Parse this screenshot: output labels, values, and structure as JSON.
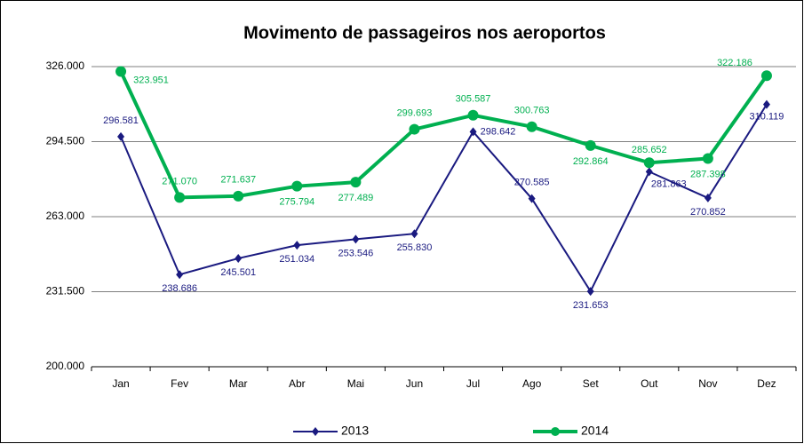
{
  "chart_data": {
    "type": "line",
    "title": "Movimento de passageiros nos aeroportos",
    "categories": [
      "Jan",
      "Fev",
      "Mar",
      "Abr",
      "Mai",
      "Jun",
      "Jul",
      "Ago",
      "Set",
      "Out",
      "Nov",
      "Dez"
    ],
    "series": [
      {
        "name": "2013",
        "color": "#1a1a80",
        "marker": "diamond",
        "values": [
          296581,
          238686,
          245501,
          251034,
          253546,
          255830,
          298642,
          270585,
          231653,
          281863,
          270852,
          310119
        ],
        "value_labels": [
          "296.581",
          "238.686",
          "245.501",
          "251.034",
          "253.546",
          "255.830",
          "298.642",
          "270.585",
          "231.653",
          "281.863",
          "270.852",
          "310.119"
        ]
      },
      {
        "name": "2014",
        "color": "#00b050",
        "marker": "circle",
        "values": [
          323951,
          271070,
          271637,
          275794,
          277489,
          299693,
          305587,
          300763,
          292864,
          285652,
          287398,
          322186
        ],
        "value_labels": [
          "323.951",
          "271.070",
          "271.637",
          "275.794",
          "277.489",
          "299.693",
          "305.587",
          "300.763",
          "292.864",
          "285.652",
          "287.398",
          "322.186"
        ]
      }
    ],
    "ylim": [
      200000,
      326000
    ],
    "yticks": [
      {
        "value": 200000,
        "label": "200.000"
      },
      {
        "value": 231500,
        "label": "231.500"
      },
      {
        "value": 263000,
        "label": "263.000"
      },
      {
        "value": 294500,
        "label": "294.500"
      },
      {
        "value": 326000,
        "label": "326.000"
      }
    ],
    "grid": true,
    "legend": "bottom"
  }
}
